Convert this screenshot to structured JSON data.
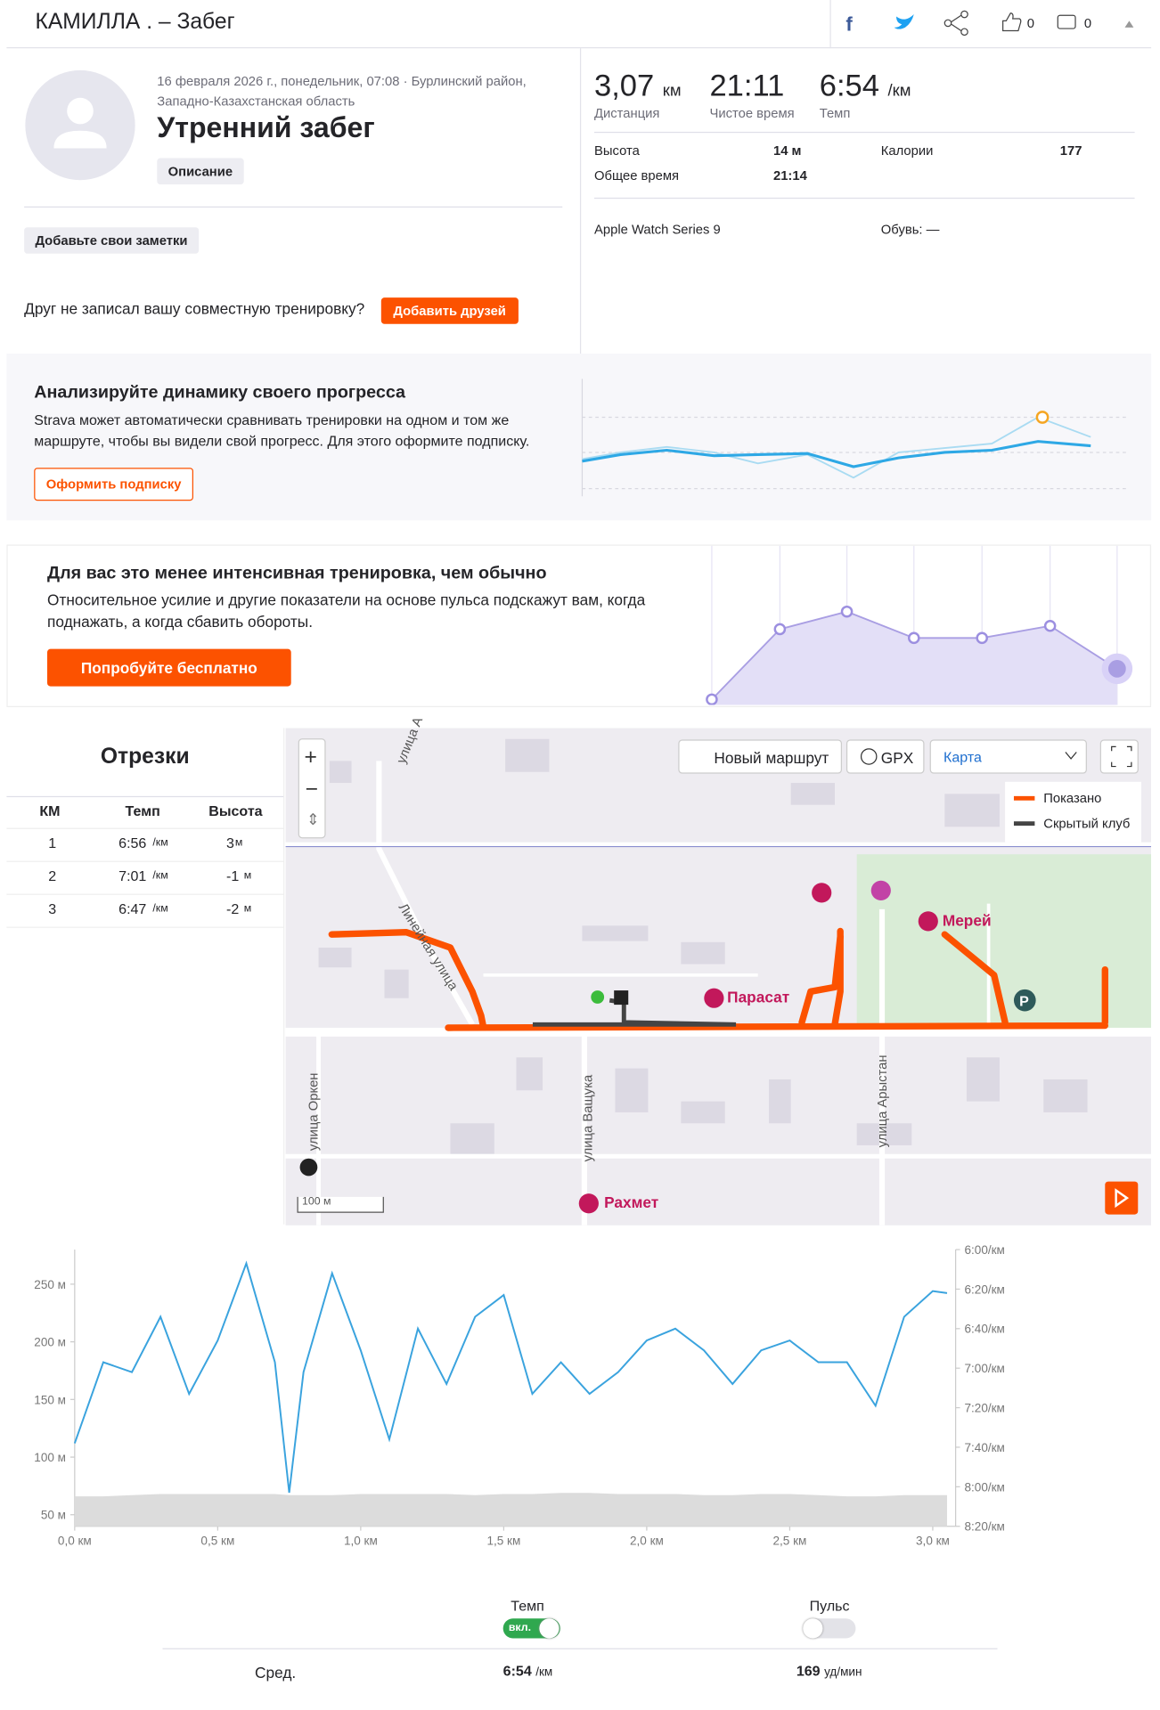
{
  "header": {
    "title": "КАМИЛЛА . – Забег",
    "kudos": "0",
    "comments": "0"
  },
  "activity": {
    "date": "16 февраля 2026 г., понедельник, 07:08 · Бурлинский район, Западно-Казахстанская область",
    "name": "Утренний забег",
    "description_button": "Описание",
    "notes_button": "Добавьте свои заметки",
    "friends_prompt": "Друг не записал вашу совместную тренировку?",
    "friends_button": "Добавить друзей"
  },
  "stats": {
    "primary": [
      {
        "value": "3,07",
        "unit": "км",
        "label": "Дистанция"
      },
      {
        "value": "21:11",
        "label": "Чистое время"
      },
      {
        "value": "6:54",
        "unit": "/км",
        "label": "Темп"
      }
    ],
    "details": [
      {
        "label": "Высота",
        "value": "14 м"
      },
      {
        "label": "Калории",
        "value": "177"
      },
      {
        "label": "Общее время",
        "value": "21:14"
      }
    ],
    "device": "Apple Watch Series 9",
    "shoes": "Обувь: —"
  },
  "promo_progress": {
    "title": "Анализируйте динамику своего прогресса",
    "text": "Strava может автоматически сравнивать тренировки на одном и том же маршруте, чтобы вы видели свой прогресс. Для этого оформите подписку.",
    "button": "Оформить подписку"
  },
  "promo_effort": {
    "title": "Для вас это менее интенсивная тренировка, чем обычно",
    "text": "Относительное усилие и другие показатели на основе пульса подскажут вам, когда поднажать, а когда сбавить обороты.",
    "button": "Попробуйте бесплатно"
  },
  "splits": {
    "title": "Отрезки",
    "columns": [
      "КМ",
      "Темп",
      "Высота"
    ],
    "rows": [
      {
        "km": "1",
        "pace": "6:56",
        "pace_unit": "/км",
        "elev": "3",
        "elev_unit": "м"
      },
      {
        "km": "2",
        "pace": "7:01",
        "pace_unit": "/км",
        "elev": "-1",
        "elev_unit": "м"
      },
      {
        "km": "3",
        "pace": "6:47",
        "pace_unit": "/км",
        "elev": "-2",
        "elev_unit": "м"
      }
    ]
  },
  "map": {
    "buttons": [
      "Новый маршрут",
      "GPX"
    ],
    "select": "Карта",
    "legend": [
      "Показано",
      "Скрытый клуб"
    ],
    "streets": [
      "улица А",
      "Линейная улица",
      "улица Ващука",
      "улица Арыстан",
      "улица Оркен"
    ],
    "places": [
      "Мерей",
      "Парасат",
      "Рахмет"
    ],
    "scale": "100 м"
  },
  "chart_data": {
    "type": "line",
    "x": [
      0,
      0.1,
      0.2,
      0.3,
      0.4,
      0.5,
      0.6,
      0.7,
      0.75,
      0.8,
      0.9,
      1.0,
      1.1,
      1.2,
      1.3,
      1.4,
      1.5,
      1.6,
      1.7,
      1.8,
      1.9,
      2.0,
      2.1,
      2.2,
      2.3,
      2.4,
      2.5,
      2.6,
      2.7,
      2.8,
      2.9,
      3.0,
      3.05
    ],
    "series": [
      {
        "name": "Темп",
        "color": "#3aa3de",
        "axis": "y2",
        "values": [
          458,
          417,
          422,
          394,
          433,
          406,
          367,
          417,
          483,
          422,
          372,
          411,
          456,
          400,
          428,
          394,
          383,
          433,
          417,
          433,
          422,
          406,
          400,
          411,
          428,
          411,
          406,
          417,
          417,
          439,
          394,
          381,
          382
        ]
      }
    ],
    "elevation": {
      "color": "#dcdcdc",
      "values": [
        66,
        66,
        67,
        68,
        68,
        68,
        68,
        68,
        67,
        67,
        67,
        68,
        68,
        68,
        68,
        67,
        68,
        68,
        69,
        69,
        68,
        68,
        68,
        67,
        67,
        68,
        68,
        67,
        66,
        66,
        67,
        67,
        67
      ]
    },
    "xlim": [
      0,
      3.08
    ],
    "xticks": [
      {
        "value": 0,
        "label": "0,0 км"
      },
      {
        "value": 0.5,
        "label": "0,5 км"
      },
      {
        "value": 1.0,
        "label": "1,0 км"
      },
      {
        "value": 1.5,
        "label": "1,5 км"
      },
      {
        "value": 2.0,
        "label": "2,0 км"
      },
      {
        "value": 2.5,
        "label": "2,5 км"
      },
      {
        "value": 3.0,
        "label": "3,0 км"
      }
    ],
    "ylim": [
      40,
      280
    ],
    "yticks": [
      {
        "value": 50,
        "label": "50 м"
      },
      {
        "value": 100,
        "label": "100 м"
      },
      {
        "value": 150,
        "label": "150 м"
      },
      {
        "value": 200,
        "label": "200 м"
      },
      {
        "value": 250,
        "label": "250 м"
      }
    ],
    "y2lim": [
      360,
      500
    ],
    "y2_inverted": true,
    "y2ticks": [
      {
        "value": 360,
        "label": "6:00/км"
      },
      {
        "value": 380,
        "label": "6:20/км"
      },
      {
        "value": 400,
        "label": "6:40/км"
      },
      {
        "value": 420,
        "label": "7:00/км"
      },
      {
        "value": 440,
        "label": "7:20/км"
      },
      {
        "value": 460,
        "label": "7:40/км"
      },
      {
        "value": 480,
        "label": "8:00/км"
      },
      {
        "value": 500,
        "label": "8:20/км"
      }
    ]
  },
  "chart_controls": {
    "toggle_state": "вкл.",
    "second_toggle": "Пульс",
    "summary": {
      "label": "Сред.",
      "pace": "6:54",
      "pace_unit": "/км",
      "hr": "169",
      "hr_unit": "уд/мин"
    }
  }
}
